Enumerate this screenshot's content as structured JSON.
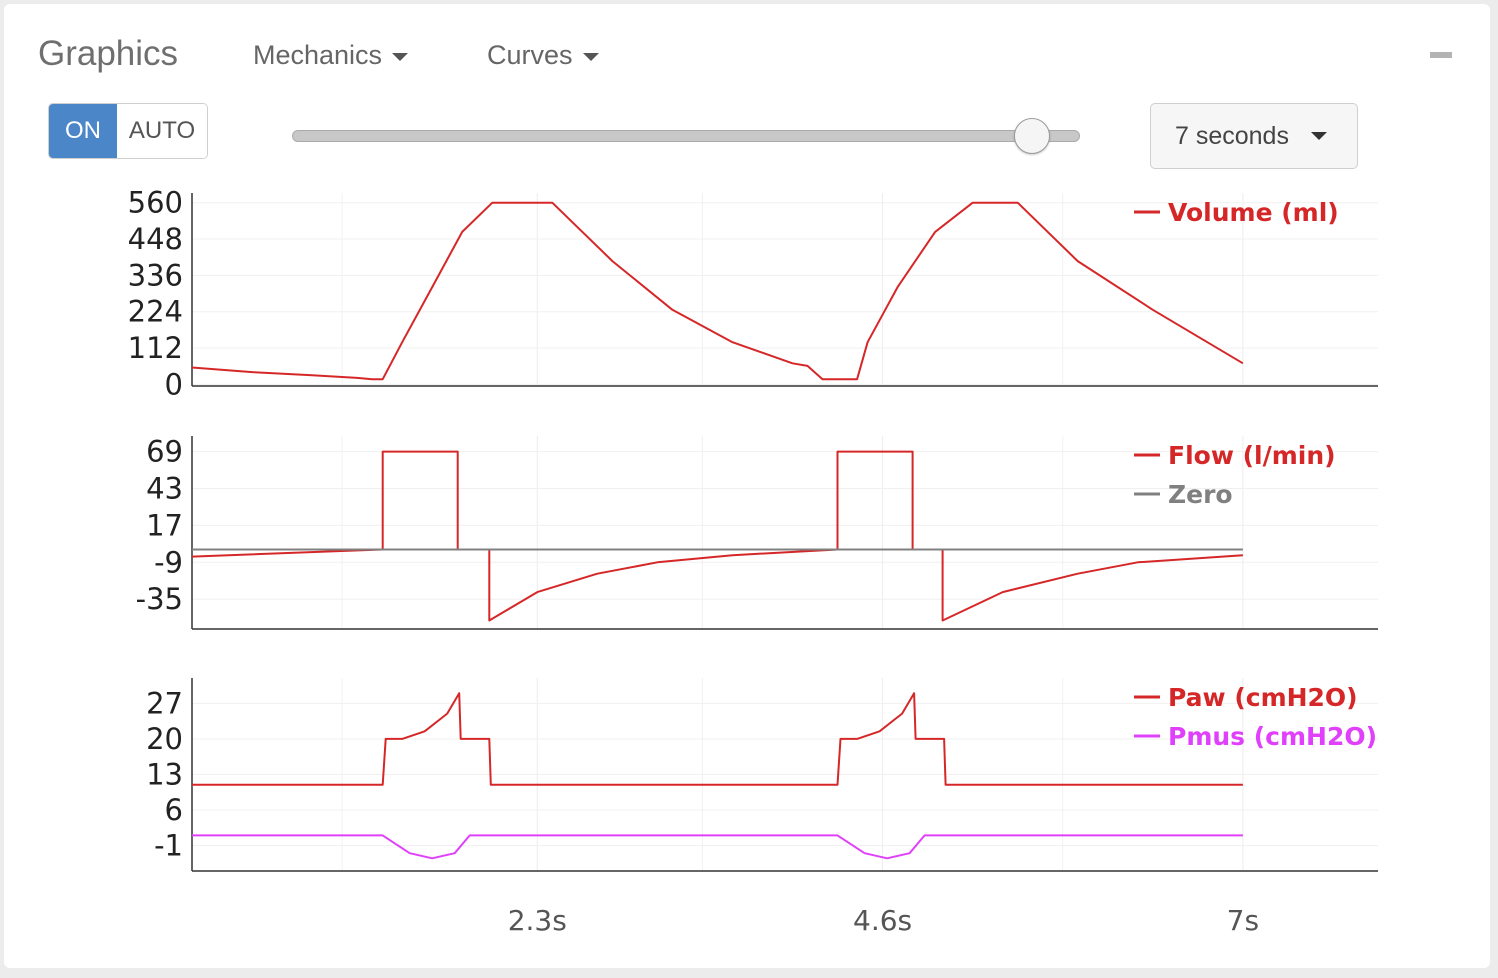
{
  "header": {
    "title": "Graphics",
    "mechanics_label": "Mechanics",
    "curves_label": "Curves"
  },
  "controls": {
    "toggle_on": "ON",
    "toggle_auto": "AUTO",
    "time_window": "7 seconds",
    "slider_value": 0.94
  },
  "colors": {
    "volume": "#d62728",
    "flow": "#d62728",
    "zero": "#808080",
    "paw": "#d62728",
    "pmus": "#e040fb"
  },
  "chart_data": [
    {
      "type": "line",
      "title": "",
      "yticks": [
        "560",
        "448",
        "336",
        "224",
        "112",
        "0"
      ],
      "ylim": [
        -5,
        590
      ],
      "series": [
        {
          "name": "Volume (ml)",
          "color": "#d62728",
          "x": [
            0.0,
            0.4,
            0.8,
            1.1,
            1.2,
            1.27,
            1.4,
            1.6,
            1.8,
            2.0,
            2.4,
            2.8,
            3.2,
            3.6,
            4.0,
            4.1,
            4.2,
            4.43,
            4.5,
            4.7,
            4.95,
            5.2,
            5.5,
            5.9,
            6.4,
            7.0
          ],
          "y": [
            52,
            38,
            28,
            20,
            16,
            16,
            130,
            300,
            470,
            560,
            560,
            380,
            230,
            130,
            65,
            57,
            16,
            16,
            130,
            300,
            470,
            560,
            560,
            380,
            230,
            65
          ]
        }
      ]
    },
    {
      "type": "line",
      "title": "",
      "yticks": [
        "69",
        "43",
        "17",
        "-9",
        "-35"
      ],
      "ylim": [
        -56,
        80
      ],
      "series": [
        {
          "name": "Flow (l/min)",
          "color": "#d62728",
          "x": [
            0.0,
            1.27,
            1.27,
            1.77,
            1.77,
            1.98,
            1.98,
            2.3,
            2.7,
            3.1,
            3.6,
            4.3,
            4.3,
            4.8,
            4.8,
            5.0,
            5.0,
            5.4,
            5.9,
            6.3,
            7.0
          ],
          "y": [
            -5,
            0,
            69,
            69,
            0,
            0,
            -50,
            -30,
            -17,
            -9,
            -4,
            0,
            69,
            69,
            0,
            0,
            -50,
            -30,
            -17,
            -9,
            -4
          ]
        },
        {
          "name": "Zero",
          "color": "#808080",
          "x": [
            0.0,
            7.0
          ],
          "y": [
            0,
            0
          ]
        }
      ]
    },
    {
      "type": "line",
      "title": "",
      "yticks": [
        "27",
        "20",
        "13",
        "6",
        "-1"
      ],
      "ylim": [
        -6,
        32
      ],
      "series": [
        {
          "name": "Paw (cmH2O)",
          "color": "#d62728",
          "x": [
            0.0,
            1.27,
            1.29,
            1.4,
            1.55,
            1.7,
            1.78,
            1.79,
            1.98,
            1.99,
            2.1,
            3.0,
            4.3,
            4.32,
            4.43,
            4.58,
            4.73,
            4.81,
            4.82,
            5.01,
            5.02,
            6.0,
            7.0
          ],
          "y": [
            11,
            11,
            20,
            20,
            21.5,
            25,
            29,
            20,
            20,
            11,
            11,
            11,
            11,
            20,
            20,
            21.5,
            25,
            29,
            20,
            20,
            11,
            11,
            11
          ]
        },
        {
          "name": "Pmus (cmH2O)",
          "color": "#e040fb",
          "x": [
            0.0,
            1.27,
            1.45,
            1.6,
            1.75,
            1.85,
            4.3,
            4.48,
            4.63,
            4.78,
            4.88,
            7.0
          ],
          "y": [
            1,
            1,
            -2.5,
            -3.5,
            -2.5,
            1,
            1,
            -2.5,
            -3.5,
            -2.5,
            1,
            1
          ]
        }
      ]
    }
  ],
  "x_axis": {
    "xlim": [
      0,
      7.9
    ],
    "ticks": [
      {
        "value": 2.3,
        "label": "2.3s"
      },
      {
        "value": 4.6,
        "label": "4.6s"
      },
      {
        "value": 7.0,
        "label": "7s"
      }
    ]
  }
}
